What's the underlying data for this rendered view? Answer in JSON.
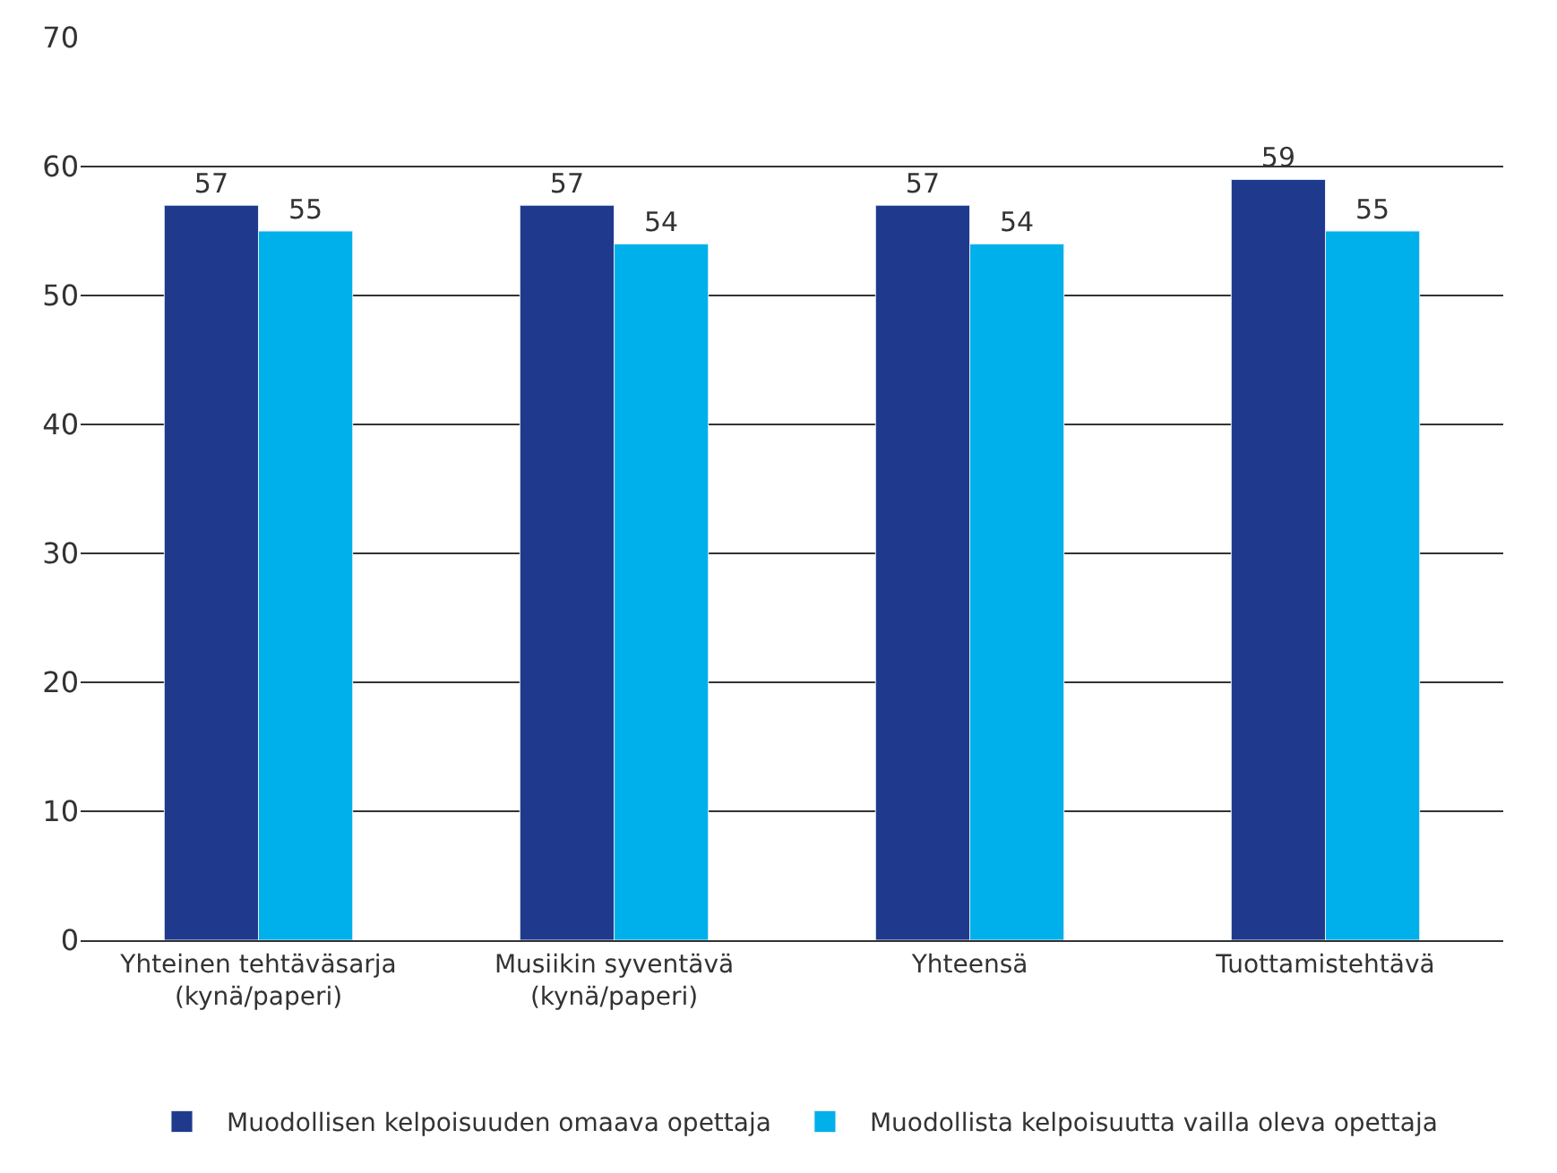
{
  "chart_data": {
    "type": "bar",
    "categories": [
      "Yhteinen tehtäväsarja\n(kynä/paperi)",
      "Musiikin syventävä\n(kynä/paperi)",
      "Yhteensä",
      "Tuottamistehtävä"
    ],
    "series": [
      {
        "name": "Muodollisen kelpoisuuden omaava opettaja",
        "color": "#1f3a8c",
        "values": [
          57,
          57,
          57,
          59
        ]
      },
      {
        "name": "Muodollista kelpoisuutta vailla oleva opettaja",
        "color": "#00b0ea",
        "values": [
          55,
          54,
          54,
          55
        ]
      }
    ],
    "ylim": [
      0,
      70
    ],
    "yticks": [
      0,
      10,
      20,
      30,
      40,
      50,
      60,
      70
    ],
    "grid": "y",
    "legend": "bottom",
    "data_labels": true
  }
}
